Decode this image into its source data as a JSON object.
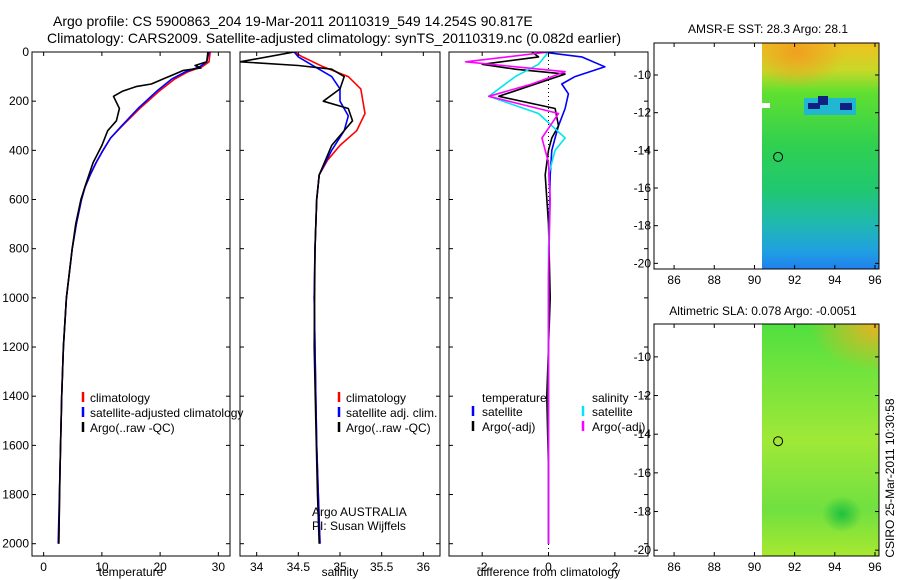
{
  "header": {
    "line1": "Argo profile: CS 5900863_204 19-Mar-2011 20110319_549 14.254S 90.817E",
    "line2": "Climatology: CARS2009. Satellite-adjusted climatology: synTS_20110319.nc (0.082d earlier)"
  },
  "footer": {
    "credit": "CSIRO 25-Mar-2011 10:30:58"
  },
  "colors": {
    "climatology": "#ff0000",
    "satellite": "#0000ff",
    "argo": "#000000",
    "salinity_satellite": "#00e5ee",
    "salinity_argo": "#ff00ff"
  },
  "chart_data": [
    {
      "id": "temperature",
      "type": "line",
      "xlabel": "temperature",
      "xlim": [
        -2,
        32
      ],
      "ylim": [
        2050,
        0
      ],
      "xticks": [
        0,
        10,
        20,
        30
      ],
      "yticks": [
        0,
        200,
        400,
        600,
        800,
        1000,
        1200,
        1400,
        1600,
        1800,
        2000
      ],
      "legend": [
        "climatology",
        "satellite-adjusted climatology",
        "Argo(..raw -QC)"
      ],
      "series": [
        {
          "name": "climatology",
          "color": "#ff0000",
          "x": [
            28.6,
            28.4,
            27.2,
            24.8,
            22.5,
            19.8,
            16.5,
            13.5,
            11.5,
            10.2,
            9.0,
            8.0,
            7.1,
            6.5,
            5.6,
            4.9,
            4.4,
            3.9,
            3.4,
            3.1,
            2.8,
            2.6
          ],
          "y": [
            0,
            40,
            60,
            80,
            110,
            160,
            230,
            300,
            350,
            400,
            450,
            500,
            550,
            600,
            700,
            800,
            900,
            1000,
            1200,
            1400,
            1700,
            2000
          ]
        },
        {
          "name": "satellite-adjusted climatology",
          "color": "#0000ff",
          "x": [
            28.4,
            28.0,
            26.8,
            24.4,
            22.0,
            19.4,
            16.2,
            13.4,
            11.5,
            10.2,
            9.0,
            8.0,
            7.1,
            6.5,
            5.6,
            4.9,
            4.4,
            3.9,
            3.4,
            3.1,
            2.8,
            2.5
          ],
          "y": [
            0,
            40,
            60,
            80,
            110,
            160,
            230,
            300,
            350,
            400,
            450,
            500,
            550,
            600,
            700,
            800,
            900,
            1000,
            1200,
            1400,
            1700,
            2000
          ]
        },
        {
          "name": "Argo(..raw -QC)",
          "color": "#000000",
          "x": [
            28.2,
            28.0,
            26.0,
            27.0,
            24.0,
            22.5,
            20.5,
            18.5,
            16.0,
            13.5,
            12.0,
            13.0,
            12.5,
            11.0,
            10.0,
            8.5,
            7.2,
            6.4,
            5.5,
            4.9,
            4.4,
            3.9,
            3.4,
            3.1,
            2.8,
            2.6
          ],
          "y": [
            0,
            40,
            55,
            65,
            75,
            90,
            110,
            130,
            140,
            160,
            180,
            230,
            280,
            320,
            380,
            450,
            540,
            600,
            700,
            800,
            900,
            1000,
            1200,
            1400,
            1700,
            2000
          ]
        }
      ]
    },
    {
      "id": "salinity",
      "type": "line",
      "xlabel": "salinity",
      "xlim": [
        33.8,
        36.2
      ],
      "ylim": [
        2050,
        0
      ],
      "xticks": [
        34,
        34.5,
        35,
        35.5,
        36
      ],
      "legend": [
        "climatology",
        "satellite adj. clim.",
        "Argo(..raw -QC)"
      ],
      "annotations": [
        "Argo AUSTRALIA",
        "PI: Susan Wijffels"
      ],
      "series": [
        {
          "name": "climatology",
          "color": "#ff0000",
          "x": [
            34.45,
            34.55,
            34.8,
            35.1,
            35.25,
            35.3,
            35.2,
            35.0,
            34.85,
            34.75,
            34.72,
            34.7,
            34.69,
            34.7,
            34.71,
            34.72,
            34.73,
            34.74,
            34.75,
            34.76
          ],
          "y": [
            0,
            20,
            60,
            100,
            150,
            250,
            320,
            380,
            440,
            500,
            600,
            800,
            1000,
            1200,
            1400,
            1600,
            1700,
            1800,
            1900,
            2000
          ]
        },
        {
          "name": "satellite adj. clim.",
          "color": "#0000ff",
          "x": [
            34.45,
            34.5,
            34.7,
            34.9,
            35.0,
            35.0,
            35.1,
            35.05,
            34.9,
            34.75,
            34.72,
            34.7,
            34.69,
            34.7,
            34.71,
            34.72,
            34.73,
            34.74,
            34.75,
            34.76
          ],
          "y": [
            0,
            20,
            60,
            100,
            150,
            200,
            260,
            320,
            400,
            500,
            600,
            800,
            1000,
            1200,
            1400,
            1600,
            1700,
            1800,
            1900,
            2000
          ]
        },
        {
          "name": "Argo(..raw -QC)",
          "color": "#000000",
          "x": [
            34.45,
            33.8,
            34.5,
            34.9,
            35.05,
            35.0,
            34.8,
            35.1,
            35.15,
            34.9,
            34.75,
            34.72,
            34.7,
            34.69,
            34.71,
            34.73,
            34.75
          ],
          "y": [
            0,
            40,
            55,
            70,
            100,
            150,
            200,
            230,
            280,
            380,
            500,
            600,
            800,
            1200,
            1500,
            1800,
            2000
          ]
        }
      ]
    },
    {
      "id": "difference",
      "type": "line",
      "xlabel": "difference from climatology",
      "xlim": [
        -3,
        3
      ],
      "ylim": [
        2050,
        0
      ],
      "xticks": [
        -2,
        0,
        2
      ],
      "legend": [
        "temperature",
        "satellite",
        "Argo(-adj)",
        "salinity",
        "satellite",
        "Argo(-adj)"
      ],
      "series": [
        {
          "name": "temperature satellite",
          "color": "#0000ff",
          "x": [
            -0.2,
            1.0,
            1.7,
            0.8,
            0.4,
            0.6,
            0.5,
            0.3,
            0.2,
            0.1,
            0.05,
            0.02,
            0.0,
            0.0,
            0.0,
            0.0
          ],
          "y": [
            0,
            20,
            60,
            100,
            130,
            170,
            230,
            300,
            350,
            400,
            500,
            700,
            1000,
            1400,
            1700,
            2000
          ]
        },
        {
          "name": "temperature Argo(-adj)",
          "color": "#000000",
          "x": [
            -0.5,
            -0.3,
            -2.0,
            -1.0,
            0.5,
            -1.5,
            0.2,
            0.3,
            0.1,
            0.0,
            -0.1,
            0.0,
            0.05,
            -0.05,
            0.0,
            0.0
          ],
          "y": [
            0,
            20,
            50,
            70,
            90,
            180,
            230,
            300,
            350,
            400,
            500,
            700,
            1000,
            1400,
            1700,
            2000
          ]
        },
        {
          "name": "salinity satellite",
          "color": "#00e5ee",
          "x": [
            0.0,
            -0.3,
            -1.0,
            -1.8,
            -0.3,
            0.5,
            0.2,
            0.0,
            0.05,
            0.0,
            0.0,
            0.0,
            0.0
          ],
          "y": [
            0,
            50,
            100,
            180,
            250,
            350,
            400,
            500,
            600,
            800,
            1200,
            1600,
            2000
          ]
        },
        {
          "name": "salinity Argo(-adj)",
          "color": "#ff00ff",
          "x": [
            0.0,
            -2.5,
            0.5,
            -0.5,
            -1.8,
            0.3,
            -0.2,
            0.0,
            0.05,
            0.0,
            0.0,
            0.0
          ],
          "y": [
            0,
            40,
            80,
            130,
            180,
            250,
            350,
            450,
            600,
            900,
            1400,
            2000
          ]
        }
      ]
    },
    {
      "id": "sst_map",
      "type": "heatmap",
      "title": "AMSR-E SST: 28.3 Argo: 28.1",
      "xlim": [
        85,
        96.2
      ],
      "ylim": [
        -20.3,
        -8.3
      ],
      "xticks": [
        86,
        88,
        90,
        92,
        94,
        96
      ],
      "yticks": [
        -10,
        -12,
        -14,
        -16,
        -18,
        -20
      ],
      "data_extent_lon": [
        90,
        96.2
      ],
      "argo_marker": [
        90.817,
        -14.254
      ]
    },
    {
      "id": "sla_map",
      "type": "heatmap",
      "title": "Altimetric SLA: 0.078 Argo: -0.0051",
      "xlim": [
        85,
        96.2
      ],
      "ylim": [
        -20.3,
        -8.3
      ],
      "xticks": [
        86,
        88,
        90,
        92,
        94,
        96
      ],
      "yticks": [
        -10,
        -12,
        -14,
        -16,
        -18,
        -20
      ],
      "data_extent_lon": [
        90,
        96.2
      ],
      "argo_marker": [
        90.817,
        -14.254
      ]
    }
  ]
}
